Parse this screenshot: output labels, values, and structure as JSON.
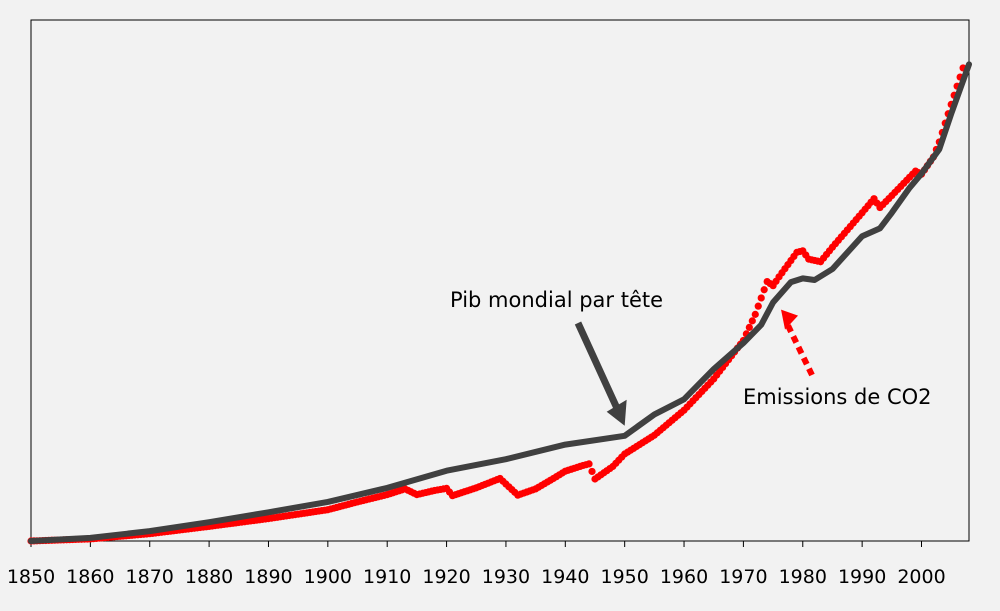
{
  "chart_data": {
    "type": "line",
    "title": "",
    "xlabel": "",
    "ylabel": "",
    "xlim": [
      1850,
      2008
    ],
    "ylim": [
      0,
      100
    ],
    "x_ticks": [
      "1850",
      "1860",
      "1870",
      "1880",
      "1890",
      "1900",
      "1910",
      "1920",
      "1930",
      "1940",
      "1950",
      "1960",
      "1970",
      "1980",
      "1990",
      "2000"
    ],
    "grid": false,
    "series": [
      {
        "name": "Pib mondial par tête",
        "style": "solid",
        "color": "#404040",
        "points": [
          [
            1850,
            0.0
          ],
          [
            1860,
            0.6
          ],
          [
            1870,
            1.9
          ],
          [
            1880,
            3.6
          ],
          [
            1890,
            5.5
          ],
          [
            1900,
            7.5
          ],
          [
            1910,
            10.2
          ],
          [
            1920,
            13.5
          ],
          [
            1930,
            15.7
          ],
          [
            1940,
            18.5
          ],
          [
            1950,
            20.2
          ],
          [
            1955,
            24.3
          ],
          [
            1960,
            27.2
          ],
          [
            1965,
            33.0
          ],
          [
            1970,
            38.0
          ],
          [
            1973,
            41.5
          ],
          [
            1975,
            45.8
          ],
          [
            1978,
            49.7
          ],
          [
            1980,
            50.4
          ],
          [
            1982,
            50.1
          ],
          [
            1985,
            52.2
          ],
          [
            1990,
            58.5
          ],
          [
            1993,
            60.0
          ],
          [
            1995,
            63.0
          ],
          [
            1998,
            67.8
          ],
          [
            2000,
            70.5
          ],
          [
            2003,
            75.2
          ],
          [
            2005,
            82.0
          ],
          [
            2008,
            91.5
          ]
        ]
      },
      {
        "name": "Emissions de CO2",
        "style": "dotted",
        "color": "#ff0000",
        "points": [
          [
            1850,
            0.0
          ],
          [
            1860,
            0.4
          ],
          [
            1870,
            1.4
          ],
          [
            1880,
            2.8
          ],
          [
            1890,
            4.3
          ],
          [
            1900,
            6.0
          ],
          [
            1905,
            7.5
          ],
          [
            1910,
            8.9
          ],
          [
            1913,
            10.0
          ],
          [
            1915,
            8.9
          ],
          [
            1918,
            9.7
          ],
          [
            1920,
            10.1
          ],
          [
            1921,
            8.7
          ],
          [
            1925,
            10.2
          ],
          [
            1929,
            12.0
          ],
          [
            1932,
            8.8
          ],
          [
            1935,
            10.0
          ],
          [
            1938,
            12.0
          ],
          [
            1940,
            13.4
          ],
          [
            1943,
            14.5
          ],
          [
            1944,
            14.8
          ],
          [
            1945,
            11.9
          ],
          [
            1948,
            14.3
          ],
          [
            1950,
            16.7
          ],
          [
            1955,
            20.3
          ],
          [
            1960,
            25.1
          ],
          [
            1965,
            31.1
          ],
          [
            1970,
            38.5
          ],
          [
            1972,
            43.5
          ],
          [
            1974,
            49.8
          ],
          [
            1975,
            49.0
          ],
          [
            1976,
            50.7
          ],
          [
            1979,
            55.4
          ],
          [
            1980,
            55.7
          ],
          [
            1981,
            54.1
          ],
          [
            1983,
            53.6
          ],
          [
            1985,
            56.4
          ],
          [
            1990,
            63.0
          ],
          [
            1992,
            65.7
          ],
          [
            1993,
            64.0
          ],
          [
            1995,
            66.3
          ],
          [
            1999,
            71.0
          ],
          [
            2000,
            70.4
          ],
          [
            2002,
            73.7
          ],
          [
            2003,
            76.6
          ],
          [
            2005,
            83.8
          ],
          [
            2007,
            90.8
          ]
        ]
      }
    ],
    "annotations": [
      {
        "text": "Pib mondial par tête",
        "points_to": "Pib mondial par tête",
        "at_x": 1950,
        "arrow": "solid"
      },
      {
        "text": "Emissions de CO2",
        "points_to": "Emissions de CO2",
        "at_x": 1976,
        "arrow": "dashed"
      }
    ]
  }
}
